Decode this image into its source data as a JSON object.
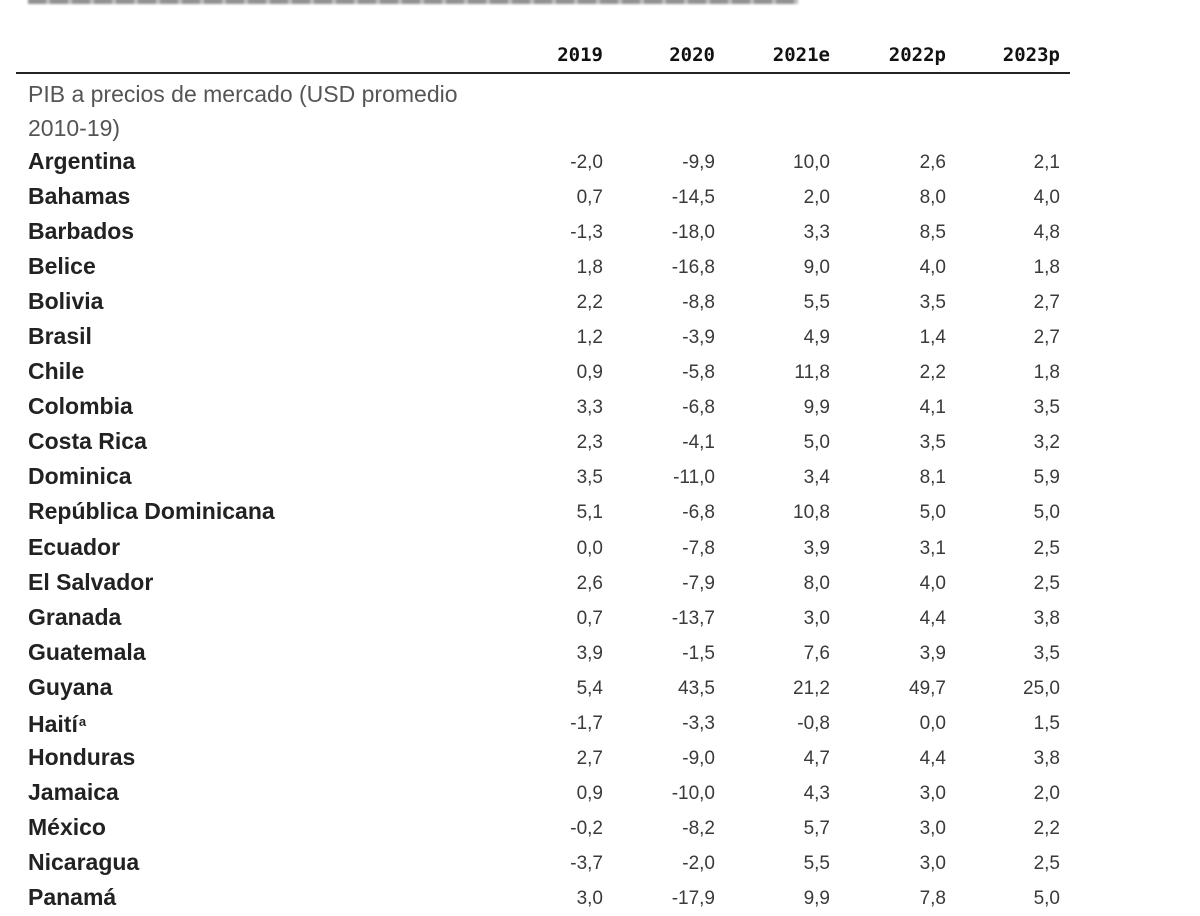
{
  "table": {
    "years": [
      "2019",
      "2020",
      "2021e",
      "2022p",
      "2023p"
    ],
    "section_title": "PIB a precios de mercado (USD promedio 2010-19)",
    "rows": [
      {
        "country": "Argentina",
        "note": "",
        "values": [
          "-2,0",
          "-9,9",
          "10,0",
          "2,6",
          "2,1"
        ]
      },
      {
        "country": "Bahamas",
        "note": "",
        "values": [
          "0,7",
          "-14,5",
          "2,0",
          "8,0",
          "4,0"
        ]
      },
      {
        "country": "Barbados",
        "note": "",
        "values": [
          "-1,3",
          "-18,0",
          "3,3",
          "8,5",
          "4,8"
        ]
      },
      {
        "country": "Belice",
        "note": "",
        "values": [
          "1,8",
          "-16,8",
          "9,0",
          "4,0",
          "1,8"
        ]
      },
      {
        "country": "Bolivia",
        "note": "",
        "values": [
          "2,2",
          "-8,8",
          "5,5",
          "3,5",
          "2,7"
        ]
      },
      {
        "country": "Brasil",
        "note": "",
        "values": [
          "1,2",
          "-3,9",
          "4,9",
          "1,4",
          "2,7"
        ]
      },
      {
        "country": "Chile",
        "note": "",
        "values": [
          "0,9",
          "-5,8",
          "11,8",
          "2,2",
          "1,8"
        ]
      },
      {
        "country": "Colombia",
        "note": "",
        "values": [
          "3,3",
          "-6,8",
          "9,9",
          "4,1",
          "3,5"
        ]
      },
      {
        "country": "Costa Rica",
        "note": "",
        "values": [
          "2,3",
          "-4,1",
          "5,0",
          "3,5",
          "3,2"
        ]
      },
      {
        "country": "Dominica",
        "note": "",
        "values": [
          "3,5",
          "-11,0",
          "3,4",
          "8,1",
          "5,9"
        ]
      },
      {
        "country": "República Dominicana",
        "note": "",
        "values": [
          "5,1",
          "-6,8",
          "10,8",
          "5,0",
          "5,0"
        ]
      },
      {
        "country": "Ecuador",
        "note": "",
        "values": [
          "0,0",
          "-7,8",
          "3,9",
          "3,1",
          "2,5"
        ]
      },
      {
        "country": "El Salvador",
        "note": "",
        "values": [
          "2,6",
          "-7,9",
          "8,0",
          "4,0",
          "2,5"
        ]
      },
      {
        "country": "Granada",
        "note": "",
        "values": [
          "0,7",
          "-13,7",
          "3,0",
          "4,4",
          "3,8"
        ]
      },
      {
        "country": "Guatemala",
        "note": "",
        "values": [
          "3,9",
          "-1,5",
          "7,6",
          "3,9",
          "3,5"
        ]
      },
      {
        "country": "Guyana",
        "note": "",
        "values": [
          "5,4",
          "43,5",
          "21,2",
          "49,7",
          "25,0"
        ]
      },
      {
        "country": "Haití",
        "note": "a",
        "values": [
          "-1,7",
          "-3,3",
          "-0,8",
          "0,0",
          "1,5"
        ]
      },
      {
        "country": "Honduras",
        "note": "",
        "values": [
          "2,7",
          "-9,0",
          "4,7",
          "4,4",
          "3,8"
        ]
      },
      {
        "country": "Jamaica",
        "note": "",
        "values": [
          "0,9",
          "-10,0",
          "4,3",
          "3,0",
          "2,0"
        ]
      },
      {
        "country": "México",
        "note": "",
        "values": [
          "-0,2",
          "-8,2",
          "5,7",
          "3,0",
          "2,2"
        ]
      },
      {
        "country": "Nicaragua",
        "note": "",
        "values": [
          "-3,7",
          "-2,0",
          "5,5",
          "3,0",
          "2,5"
        ]
      },
      {
        "country": "Panamá",
        "note": "",
        "values": [
          "3,0",
          "-17,9",
          "9,9",
          "7,8",
          "5,0"
        ]
      }
    ]
  }
}
